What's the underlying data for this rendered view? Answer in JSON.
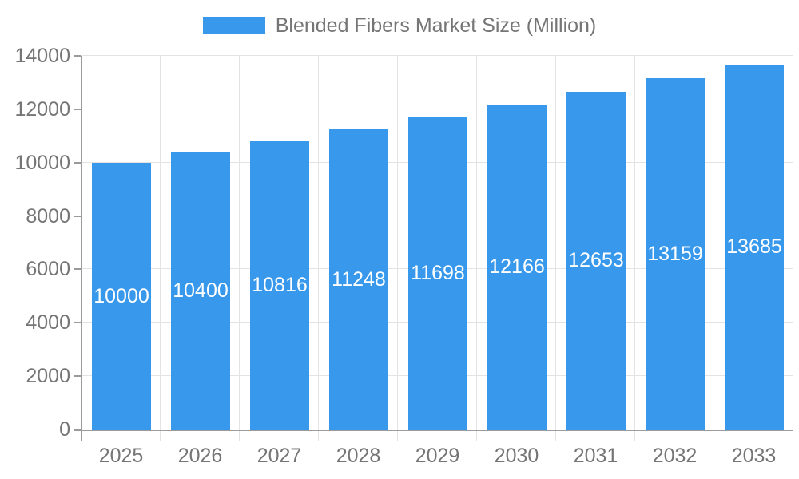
{
  "legend": {
    "label": "Blended Fibers Market Size (Million)"
  },
  "chart_data": {
    "type": "bar",
    "title": "Blended Fibers Market Size (Million)",
    "series": [
      {
        "name": "Blended Fibers Market Size (Million)",
        "values": [
          10000,
          10400,
          10816,
          11248,
          11698,
          12166,
          12653,
          13159,
          13685
        ]
      }
    ],
    "categories": [
      "2025",
      "2026",
      "2027",
      "2028",
      "2029",
      "2030",
      "2031",
      "2032",
      "2033"
    ],
    "values": [
      10000,
      10400,
      10816,
      11248,
      11698,
      12166,
      12653,
      13159,
      13685
    ],
    "data_labels_visible": true,
    "xlabel": "",
    "ylabel": "",
    "ylim": [
      0,
      14000
    ],
    "yticks": [
      0,
      2000,
      4000,
      6000,
      8000,
      10000,
      12000,
      14000
    ],
    "grid": true,
    "legend_position": "top-center",
    "colors": {
      "bar": "#3898EC",
      "value_label": "#FFFFFF",
      "axis_text": "#757575",
      "grid_line": "#E3E3E3",
      "axis_line": "#9B9B9B"
    }
  }
}
